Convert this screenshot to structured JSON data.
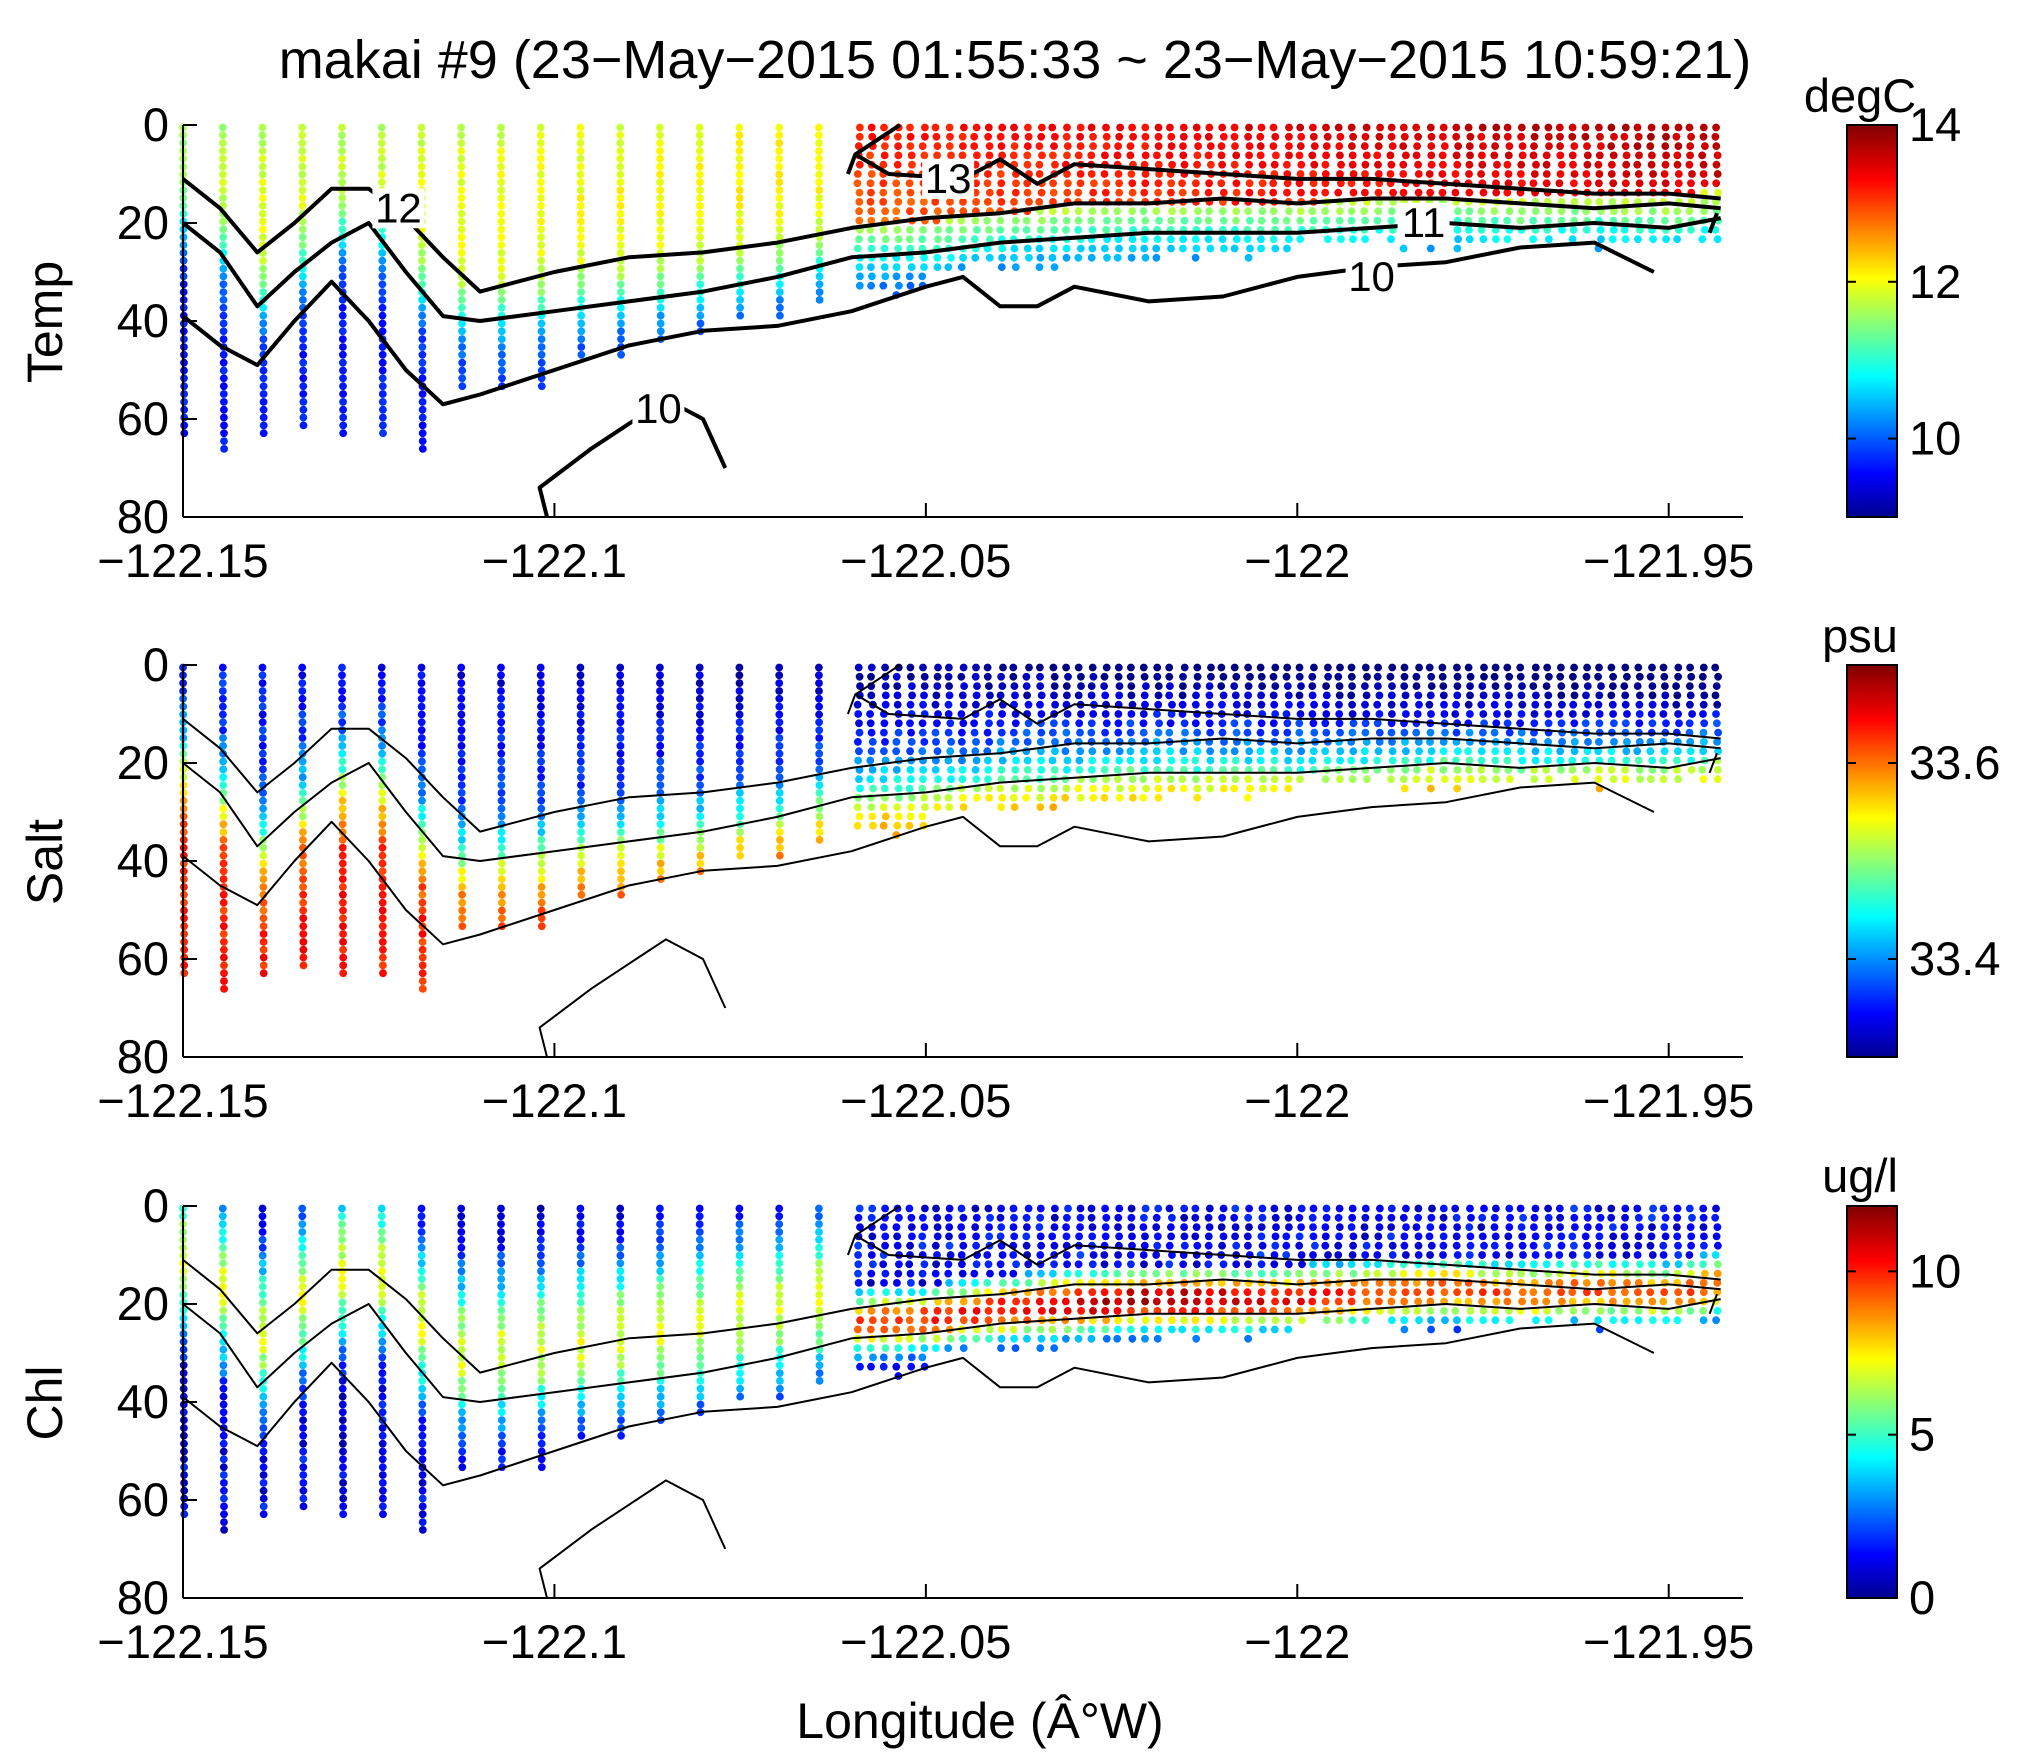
{
  "figure": {
    "title": "makai #9 (23−May−2015 01:55:33 ~ 23−May−2015 10:59:21)",
    "xlabel": "Longitude (Â°W)"
  },
  "chart_data": [
    {
      "type": "scatter",
      "variable": "Temp",
      "ylabel": "Temp",
      "colorbar_unit": "degC",
      "colormap": "jet",
      "clim": [
        9,
        14
      ],
      "colorbar_ticks": [
        10,
        12,
        14
      ],
      "colorbar_ticklabels": [
        "10",
        "12",
        "14"
      ],
      "xlim": [
        -122.15,
        -121.94
      ],
      "ylim": [
        0,
        80
      ],
      "y_reversed": true,
      "xticks": [
        -122.15,
        -122.1,
        -122.05,
        -122,
        -121.95
      ],
      "xticklabels": [
        "−122.15",
        "−122.1",
        "−122.05",
        "−122",
        "−121.95"
      ],
      "yticks": [
        0,
        20,
        40,
        60,
        80
      ],
      "yticklabels": [
        "0",
        "20",
        "40",
        "60",
        "80"
      ],
      "contour_labels": [
        "13",
        "12",
        "11",
        "10",
        "10"
      ],
      "description_of_field": "Warm (13-14 degC) water above ~15 m in the east, cooling to ~9.5 degC below 40 m in the west"
    },
    {
      "type": "scatter",
      "variable": "Salt",
      "ylabel": "Salt",
      "colorbar_unit": "psu",
      "colormap": "jet",
      "clim": [
        33.3,
        33.7
      ],
      "colorbar_ticks": [
        33.4,
        33.6
      ],
      "colorbar_ticklabels": [
        "33.4",
        "33.6"
      ],
      "xlim": [
        -122.15,
        -121.94
      ],
      "ylim": [
        0,
        80
      ],
      "y_reversed": true,
      "xticks": [
        -122.15,
        -122.1,
        -122.05,
        -122,
        -121.95
      ],
      "xticklabels": [
        "−122.15",
        "−122.1",
        "−122.05",
        "−122",
        "−121.95"
      ],
      "yticks": [
        0,
        20,
        40,
        60,
        80
      ],
      "yticklabels": [
        "0",
        "20",
        "40",
        "60",
        "80"
      ],
      "description_of_field": "Fresh (~33.35 psu) surface water in the east, saltier (~33.65 psu) water at depth in the west"
    },
    {
      "type": "scatter",
      "variable": "Chl",
      "ylabel": "Chl",
      "colorbar_unit": "ug/l",
      "colormap": "jet",
      "clim": [
        0,
        12
      ],
      "colorbar_ticks": [
        0,
        5,
        10
      ],
      "colorbar_ticklabels": [
        "0",
        "5",
        "10"
      ],
      "xlim": [
        -122.15,
        -121.94
      ],
      "ylim": [
        0,
        80
      ],
      "y_reversed": true,
      "xticks": [
        -122.15,
        -122.1,
        -122.05,
        -122,
        -121.95
      ],
      "xticklabels": [
        "−122.15",
        "−122.1",
        "−122.05",
        "−122",
        "−121.95"
      ],
      "yticks": [
        0,
        20,
        40,
        60,
        80
      ],
      "yticklabels": [
        "0",
        "20",
        "40",
        "60",
        "80"
      ],
      "description_of_field": "Subsurface chlorophyll maximum (~9-11 ug/l) near 20 m between -122.04 and -121.97; low (<2 ug/l) near surface in east and at depth in west"
    }
  ],
  "contours": {
    "c13": {
      "label": "13",
      "lon": [
        -122.0605,
        -122.0595,
        -122.055,
        -122.045,
        -122.04,
        -122.035,
        -122.03,
        -122.02,
        -122.01,
        -122.0,
        -121.99,
        -121.98,
        -121.97,
        -121.96,
        -121.95,
        -121.943
      ],
      "depth": [
        10,
        6,
        10,
        11,
        7,
        12,
        8,
        9,
        10,
        11,
        11,
        12,
        13,
        14,
        14,
        15
      ]
    },
    "c13_tip": {
      "label": "",
      "lon": [
        -122.0595,
        -122.0535
      ],
      "depth": [
        6,
        0
      ]
    },
    "c12": {
      "label": "12",
      "lon": [
        -122.15,
        -122.145,
        -122.14,
        -122.135,
        -122.13,
        -122.125,
        -122.12,
        -122.115,
        -122.11,
        -122.1,
        -122.09,
        -122.08,
        -122.07,
        -122.06,
        -122.05,
        -122.04,
        -122.03,
        -122.02,
        -122.01,
        -122.0,
        -121.99,
        -121.98,
        -121.97,
        -121.96,
        -121.95,
        -121.943
      ],
      "depth": [
        11,
        17,
        26,
        20,
        13,
        13,
        19,
        27,
        34,
        30,
        27,
        26,
        24,
        21,
        19,
        18,
        16,
        16,
        15,
        16,
        15,
        15,
        16,
        17,
        16,
        17
      ]
    },
    "c11": {
      "label": "11",
      "lon": [
        -122.15,
        -122.145,
        -122.14,
        -122.135,
        -122.13,
        -122.125,
        -122.12,
        -122.115,
        -122.11,
        -122.1,
        -122.09,
        -122.08,
        -122.07,
        -122.06,
        -122.05,
        -122.04,
        -122.03,
        -122.02,
        -122.01,
        -122.0,
        -121.99,
        -121.98,
        -121.97,
        -121.96,
        -121.95,
        -121.943
      ],
      "depth": [
        20,
        26,
        37,
        30,
        24,
        20,
        30,
        39,
        40,
        38,
        36,
        34,
        31,
        27,
        26,
        24,
        23,
        22,
        22,
        22,
        21,
        20,
        21,
        20,
        21,
        19
      ]
    },
    "c10_upper": {
      "label": "10",
      "lon": [
        -122.15,
        -122.145,
        -122.14,
        -122.135,
        -122.13,
        -122.125,
        -122.12,
        -122.115,
        -122.11,
        -122.1,
        -122.09,
        -122.08,
        -122.07,
        -122.06,
        -122.05,
        -122.045,
        -122.04,
        -122.035,
        -122.03,
        -122.02,
        -122.01,
        -122.0,
        -121.99,
        -121.98,
        -121.97,
        -121.96,
        -121.952
      ],
      "depth": [
        39,
        45,
        49,
        40,
        32,
        40,
        50,
        57,
        55,
        50,
        45,
        42,
        41,
        38,
        33,
        31,
        37,
        37,
        33,
        36,
        35,
        31,
        29,
        28,
        25,
        24,
        30
      ]
    },
    "c10_lower": {
      "label": "10",
      "lon": [
        -122.101,
        -122.102,
        -122.095,
        -122.09,
        -122.085,
        -122.08,
        -122.077
      ],
      "depth": [
        80,
        74,
        66,
        61,
        56,
        60,
        70
      ]
    },
    "c_small": {
      "label": "",
      "lon": [
        -121.9445,
        -121.9435
      ],
      "depth": [
        22,
        18
      ]
    }
  }
}
